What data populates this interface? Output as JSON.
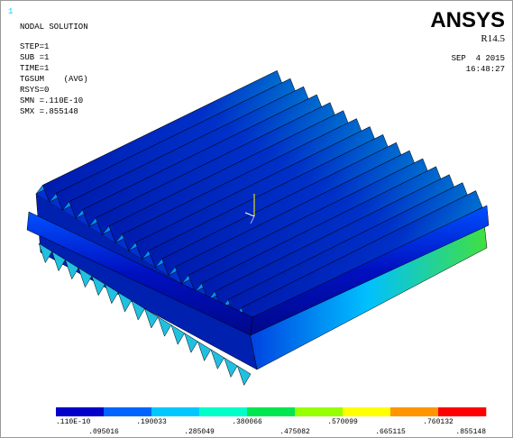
{
  "window_number": "1",
  "info": {
    "title": "NODAL SOLUTION",
    "lines": [
      "STEP=1",
      "SUB =1",
      "TIME=1",
      "TGSUM    (AVG)",
      "RSYS=0",
      "SMN =.110E-10",
      "SMX =.855148"
    ]
  },
  "brand": {
    "name": "ANSYS",
    "release": "R14.5",
    "date": "SEP  4 2015",
    "time": "16:48:27"
  },
  "legend": {
    "colors": [
      "#0000c8",
      "#0064ff",
      "#00c8ff",
      "#00ffc8",
      "#00e650",
      "#96ff00",
      "#ffff00",
      "#ff9600",
      "#ff0000"
    ],
    "labels": [
      ".110E-10",
      ".095016",
      ".190033",
      ".285049",
      ".380066",
      ".475082",
      ".570099",
      ".665115",
      ".760132",
      ".855148"
    ]
  }
}
